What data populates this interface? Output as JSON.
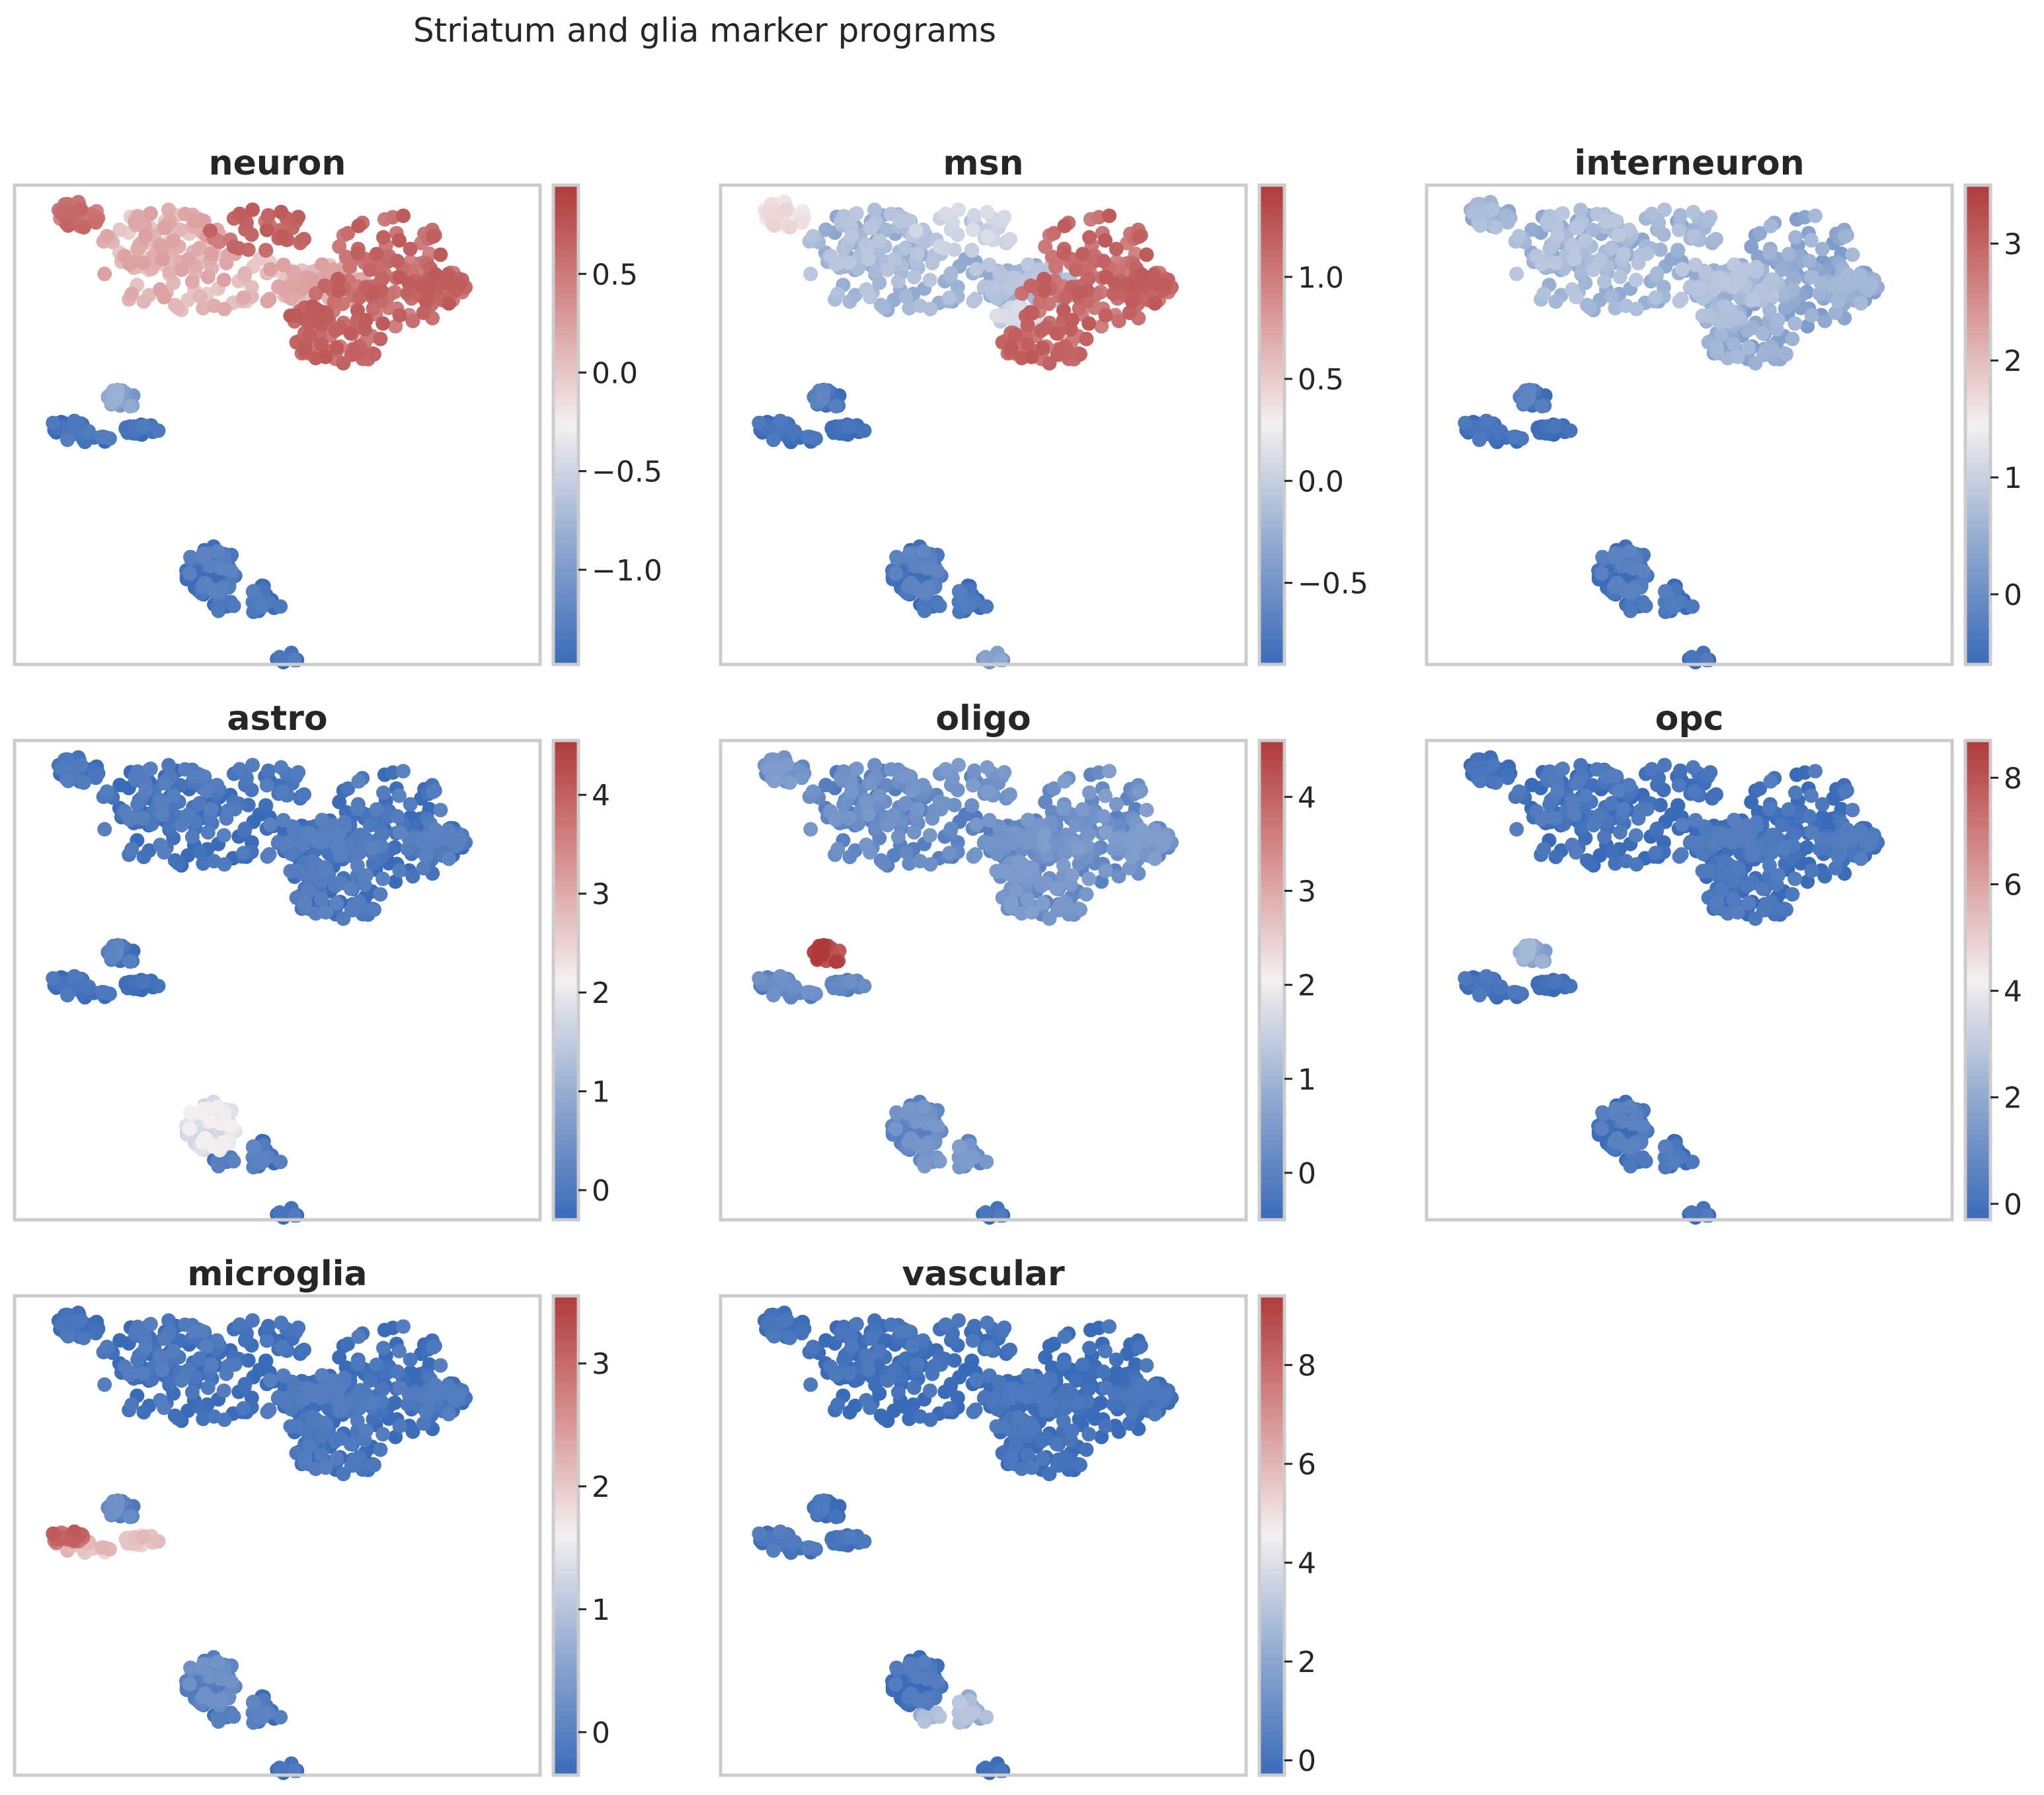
{
  "title": "Striatum and glia marker programs",
  "colormap": [
    "#3a6bb8",
    "#90a9d0",
    "#f4f0f0",
    "#d79090",
    "#b03a3a"
  ],
  "chart_data": [
    {
      "type": "scatter",
      "title": "neuron",
      "colorbar": {
        "range": [
          -1.48,
          0.95
        ],
        "ticks": [
          {
            "v": 0.5,
            "label": "0.5"
          },
          {
            "v": 0.0,
            "label": "0.0"
          },
          {
            "v": -0.5,
            "label": "−0.5"
          },
          {
            "v": -1.0,
            "label": "−1.0"
          }
        ]
      },
      "clusters": {
        "c0": 0.65,
        "c1": 0.82,
        "c2": 0.85,
        "c3": 0.85,
        "c4": 0.22,
        "c5": 0.0,
        "c6": 0.02,
        "c7": 0.04,
        "c8": 0.02,
        "c9": 0.03
      }
    },
    {
      "type": "scatter",
      "title": "msn",
      "colorbar": {
        "range": [
          -0.9,
          1.45
        ],
        "ticks": [
          {
            "v": 1.0,
            "label": "1.0"
          },
          {
            "v": 0.5,
            "label": "0.5"
          },
          {
            "v": 0.0,
            "label": "0.0"
          },
          {
            "v": -0.5,
            "label": "−0.5"
          }
        ]
      },
      "clusters": {
        "c0": 0.3,
        "c1": 0.52,
        "c2": 0.38,
        "c3": 0.85,
        "c4": 0.05,
        "c5": 0.0,
        "c6": 0.0,
        "c7": 0.05,
        "c8": 0.02,
        "c9": 0.2
      }
    },
    {
      "type": "scatter",
      "title": "interneuron",
      "colorbar": {
        "range": [
          -0.6,
          3.5
        ],
        "ticks": [
          {
            "v": 3,
            "label": "3"
          },
          {
            "v": 2,
            "label": "2"
          },
          {
            "v": 1,
            "label": "1"
          },
          {
            "v": 0,
            "label": "0"
          }
        ]
      },
      "clusters": {
        "c0": 0.3,
        "c1": 0.28,
        "c2": 0.28,
        "c3": 0.25,
        "c4": 0.05,
        "c5": 0.0,
        "c6": 0.0,
        "c7": 0.04,
        "c8": 0.02,
        "c9": 0.02
      }
    },
    {
      "type": "scatter",
      "title": "astro",
      "colorbar": {
        "range": [
          -0.3,
          4.55
        ],
        "ticks": [
          {
            "v": 4,
            "label": "4"
          },
          {
            "v": 3,
            "label": "3"
          },
          {
            "v": 2,
            "label": "2"
          },
          {
            "v": 1,
            "label": "1"
          },
          {
            "v": 0,
            "label": "0"
          }
        ]
      },
      "clusters": {
        "c0": 0.03,
        "c1": 0.02,
        "c2": 0.02,
        "c3": 0.04,
        "c4": 0.05,
        "c5": 0.0,
        "c6": 0.0,
        "c7": 0.45,
        "c8": 0.05,
        "c9": 0.02
      }
    },
    {
      "type": "scatter",
      "title": "oligo",
      "colorbar": {
        "range": [
          -0.5,
          4.6
        ],
        "ticks": [
          {
            "v": 4,
            "label": "4"
          },
          {
            "v": 3,
            "label": "3"
          },
          {
            "v": 2,
            "label": "2"
          },
          {
            "v": 1,
            "label": "1"
          },
          {
            "v": 0,
            "label": "0"
          }
        ]
      },
      "clusters": {
        "c0": 0.12,
        "c1": 0.15,
        "c2": 0.14,
        "c3": 0.15,
        "c4": 0.95,
        "c5": 0.1,
        "c6": 0.1,
        "c7": 0.12,
        "c8": 0.15,
        "c9": 0.02
      }
    },
    {
      "type": "scatter",
      "title": "opc",
      "colorbar": {
        "range": [
          -0.3,
          8.7
        ],
        "ticks": [
          {
            "v": 8,
            "label": "8"
          },
          {
            "v": 6,
            "label": "6"
          },
          {
            "v": 4,
            "label": "4"
          },
          {
            "v": 2,
            "label": "2"
          },
          {
            "v": 0,
            "label": "0"
          }
        ]
      },
      "clusters": {
        "c0": 0.02,
        "c1": 0.0,
        "c2": 0.0,
        "c3": 0.02,
        "c4": 0.25,
        "c5": 0.0,
        "c6": 0.0,
        "c7": 0.04,
        "c8": 0.02,
        "c9": 0.02
      }
    },
    {
      "type": "scatter",
      "title": "microglia",
      "colorbar": {
        "range": [
          -0.35,
          3.55
        ],
        "ticks": [
          {
            "v": 3,
            "label": "3"
          },
          {
            "v": 2,
            "label": "2"
          },
          {
            "v": 1,
            "label": "1"
          },
          {
            "v": 0,
            "label": "0"
          }
        ]
      },
      "clusters": {
        "c0": 0.02,
        "c1": 0.0,
        "c2": 0.0,
        "c3": 0.02,
        "c4": 0.1,
        "c5": 0.85,
        "c6": 0.6,
        "c7": 0.1,
        "c8": 0.05,
        "c9": 0.02
      }
    },
    {
      "type": "scatter",
      "title": "vascular",
      "colorbar": {
        "range": [
          -0.3,
          9.4
        ],
        "ticks": [
          {
            "v": 8,
            "label": "8"
          },
          {
            "v": 6,
            "label": "6"
          },
          {
            "v": 4,
            "label": "4"
          },
          {
            "v": 2,
            "label": "2"
          },
          {
            "v": 0,
            "label": "0"
          }
        ]
      },
      "clusters": {
        "c0": 0.0,
        "c1": 0.0,
        "c2": 0.0,
        "c3": 0.0,
        "c4": 0.0,
        "c5": 0.02,
        "c6": 0.02,
        "c7": 0.02,
        "c8": 0.3,
        "c9": 0.0
      }
    }
  ]
}
